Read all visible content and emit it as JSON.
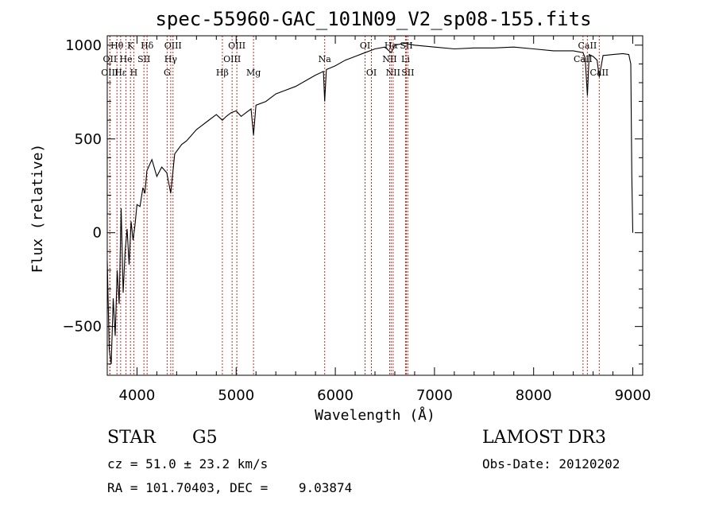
{
  "chart_data": {
    "type": "line",
    "title": "spec-55960-GAC_101N09_V2_sp08-155.fits",
    "xlabel": "Wavelength (Å)",
    "ylabel": "Flux (relative)",
    "xlim": [
      3700,
      9100
    ],
    "ylim": [
      -760,
      1050
    ],
    "x_ticks": [
      4000,
      5000,
      6000,
      7000,
      8000,
      9000
    ],
    "x_tick_labels": [
      "4000",
      "5000",
      "6000",
      "7000",
      "8000",
      "9000"
    ],
    "y_ticks": [
      -500,
      0,
      500,
      1000
    ],
    "y_tick_labels": [
      "−500",
      "0",
      "500",
      "1000"
    ],
    "series": [
      {
        "name": "flux",
        "x": [
          3700,
          3720,
          3740,
          3760,
          3780,
          3800,
          3820,
          3840,
          3860,
          3880,
          3900,
          3920,
          3940,
          3960,
          3980,
          4000,
          4030,
          4060,
          4080,
          4100,
          4150,
          4200,
          4250,
          4300,
          4340,
          4380,
          4450,
          4500,
          4600,
          4700,
          4800,
          4861,
          4900,
          4950,
          5000,
          5050,
          5100,
          5150,
          5175,
          5200,
          5300,
          5400,
          5500,
          5600,
          5700,
          5800,
          5880,
          5893,
          5910,
          6000,
          6100,
          6200,
          6300,
          6400,
          6500,
          6563,
          6600,
          6700,
          6800,
          7000,
          7200,
          7400,
          7600,
          7800,
          8000,
          8200,
          8400,
          8498,
          8520,
          8542,
          8560,
          8600,
          8640,
          8662,
          8700,
          8800,
          8900,
          8960,
          8980,
          8990,
          9000
        ],
        "values": [
          -150,
          -620,
          -700,
          -350,
          -550,
          -200,
          -380,
          130,
          -320,
          -100,
          20,
          -170,
          60,
          -40,
          40,
          150,
          140,
          240,
          210,
          330,
          390,
          300,
          350,
          320,
          210,
          420,
          470,
          490,
          550,
          590,
          630,
          600,
          620,
          640,
          650,
          620,
          640,
          660,
          520,
          680,
          700,
          740,
          760,
          780,
          810,
          840,
          860,
          700,
          870,
          890,
          920,
          940,
          960,
          980,
          990,
          960,
          1000,
          1010,
          1000,
          990,
          980,
          985,
          985,
          990,
          980,
          970,
          970,
          960,
          930,
          730,
          950,
          940,
          920,
          830,
          945,
          950,
          955,
          950,
          900,
          300,
          0
        ]
      }
    ],
    "spectral_lines": [
      {
        "label": "Hθ",
        "wavelength": 3798,
        "row": 0
      },
      {
        "label": "K",
        "wavelength": 3934,
        "row": 0
      },
      {
        "label": "Hδ",
        "wavelength": 4102,
        "row": 0
      },
      {
        "label": "OIII",
        "wavelength": 4363,
        "row": 0
      },
      {
        "label": "OIII",
        "wavelength": 5007,
        "row": 0
      },
      {
        "label": "OI",
        "wavelength": 6300,
        "row": 0
      },
      {
        "label": "Hα",
        "wavelength": 6563,
        "row": 0
      },
      {
        "label": "SII",
        "wavelength": 6716,
        "row": 0
      },
      {
        "label": "CaII",
        "wavelength": 8542,
        "row": 0
      },
      {
        "label": "OII",
        "wavelength": 3727,
        "row": 1
      },
      {
        "label": "He",
        "wavelength": 3889,
        "row": 1
      },
      {
        "label": "SII",
        "wavelength": 4070,
        "row": 1
      },
      {
        "label": "Hγ",
        "wavelength": 4340,
        "row": 1
      },
      {
        "label": "OIII",
        "wavelength": 4959,
        "row": 1
      },
      {
        "label": "Na",
        "wavelength": 5893,
        "row": 1
      },
      {
        "label": "NII",
        "wavelength": 6548,
        "row": 1
      },
      {
        "label": "Li",
        "wavelength": 6708,
        "row": 1
      },
      {
        "label": "CaII",
        "wavelength": 8498,
        "row": 1
      },
      {
        "label": "OIII",
        "wavelength": 3726,
        "row": 2
      },
      {
        "label": "Hε",
        "wavelength": 3835,
        "row": 2
      },
      {
        "label": "H",
        "wavelength": 3968,
        "row": 2
      },
      {
        "label": "G",
        "wavelength": 4304,
        "row": 2
      },
      {
        "label": "Hβ",
        "wavelength": 4861,
        "row": 2
      },
      {
        "label": "Mg",
        "wavelength": 5175,
        "row": 2
      },
      {
        "label": "OI",
        "wavelength": 6364,
        "row": 2
      },
      {
        "label": "NII",
        "wavelength": 6583,
        "row": 2
      },
      {
        "label": "SII",
        "wavelength": 6731,
        "row": 2
      },
      {
        "label": "CaII",
        "wavelength": 8662,
        "row": 2
      }
    ]
  },
  "info": {
    "object_class": "STAR",
    "subclass": "G5",
    "survey": "LAMOST DR3",
    "redshift": "cz = 51.0 ± 23.2 km/s",
    "obs_date": "Obs-Date: 20120202",
    "coords": "RA = 101.70403, DEC =    9.03874"
  },
  "colors": {
    "spectrum": "#000000",
    "line_markers": "#cc2a1e",
    "axes": "#000000"
  }
}
